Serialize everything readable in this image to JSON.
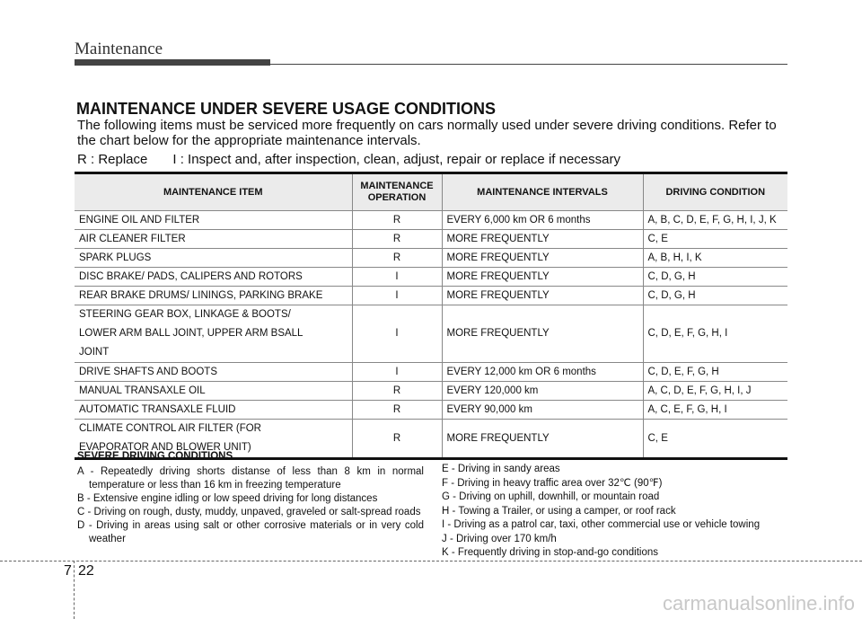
{
  "header": {
    "section": "Maintenance"
  },
  "title": "MAINTENANCE UNDER SEVERE USAGE CONDITIONS",
  "intro": "The following items must be serviced more frequently on cars normally used under severe driving conditions. Refer to the chart below for the appropriate maintenance intervals.",
  "legend": {
    "r": "R : Replace",
    "i": "I : Inspect and, after inspection, clean, adjust, repair or replace if necessary"
  },
  "table": {
    "headers": [
      "MAINTENANCE ITEM",
      "MAINTENANCE OPERATION",
      "MAINTENANCE INTERVALS",
      "DRIVING CONDITION"
    ],
    "rows": [
      [
        "ENGINE OIL AND FILTER",
        "R",
        "EVERY 6,000 km  OR 6 months",
        "A, B, C, D, E, F, G, H, I, J, K"
      ],
      [
        "AIR CLEANER FILTER",
        "R",
        "MORE FREQUENTLY",
        "C, E"
      ],
      [
        "SPARK PLUGS",
        "R",
        "MORE FREQUENTLY",
        "A, B, H, I, K"
      ],
      [
        "DISC BRAKE/ PADS, CALIPERS AND ROTORS",
        "I",
        "MORE FREQUENTLY",
        "C, D, G, H"
      ],
      [
        "REAR BRAKE  DRUMS/ LININGS, PARKING BRAKE",
        "I",
        "MORE FREQUENTLY",
        "C, D, G, H"
      ],
      [
        "STEERING GEAR BOX, LINKAGE & BOOTS/ LOWER ARM BALL JOINT, UPPER ARM BSALL JOINT",
        "I",
        "MORE FREQUENTLY",
        "C, D, E, F, G, H, I"
      ],
      [
        "DRIVE SHAFTS AND BOOTS",
        "I",
        "EVERY 12,000 km OR 6 months",
        "C, D, E, F, G, H"
      ],
      [
        "MANUAL TRANSAXLE OIL",
        "R",
        "EVERY 120,000 km",
        "A, C, D, E, F, G, H, I, J"
      ],
      [
        "AUTOMATIC TRANSAXLE FLUID",
        "R",
        "EVERY 90,000 km",
        "A, C, E, F, G, H, I"
      ],
      [
        "CLIMATE CONTROL AIR FILTER (FOR EVAPORATOR AND BLOWER UNIT)",
        "R",
        "MORE FREQUENTLY",
        "C, E"
      ]
    ]
  },
  "severe": {
    "title": "SEVERE DRIVING CONDITIONS",
    "left": [
      "A - Repeatedly driving shorts distanse of less than 8 km in normal temperature or less than 16 km in freezing temperature",
      "B - Extensive engine idling or low speed driving for long distances",
      "C - Driving on rough, dusty, muddy, unpaved, graveled or salt-spread roads",
      "D - Driving in areas using salt or other corrosive materials or in very cold weather"
    ],
    "right": [
      "E - Driving in sandy areas",
      "F - Driving in heavy traffic area over 32℃ (90℉)",
      "G - Driving on uphill, downhill, or mountain road",
      "H - Towing a Trailer, or using a camper, or roof rack",
      "I - Driving as a patrol car, taxi, other commercial use or vehicle towing",
      "J - Driving over 170 km/h",
      "K - Frequently driving in stop-and-go conditions"
    ]
  },
  "footer": {
    "chapter": "7",
    "page": "22"
  },
  "watermark": "carmanualsonline.info"
}
